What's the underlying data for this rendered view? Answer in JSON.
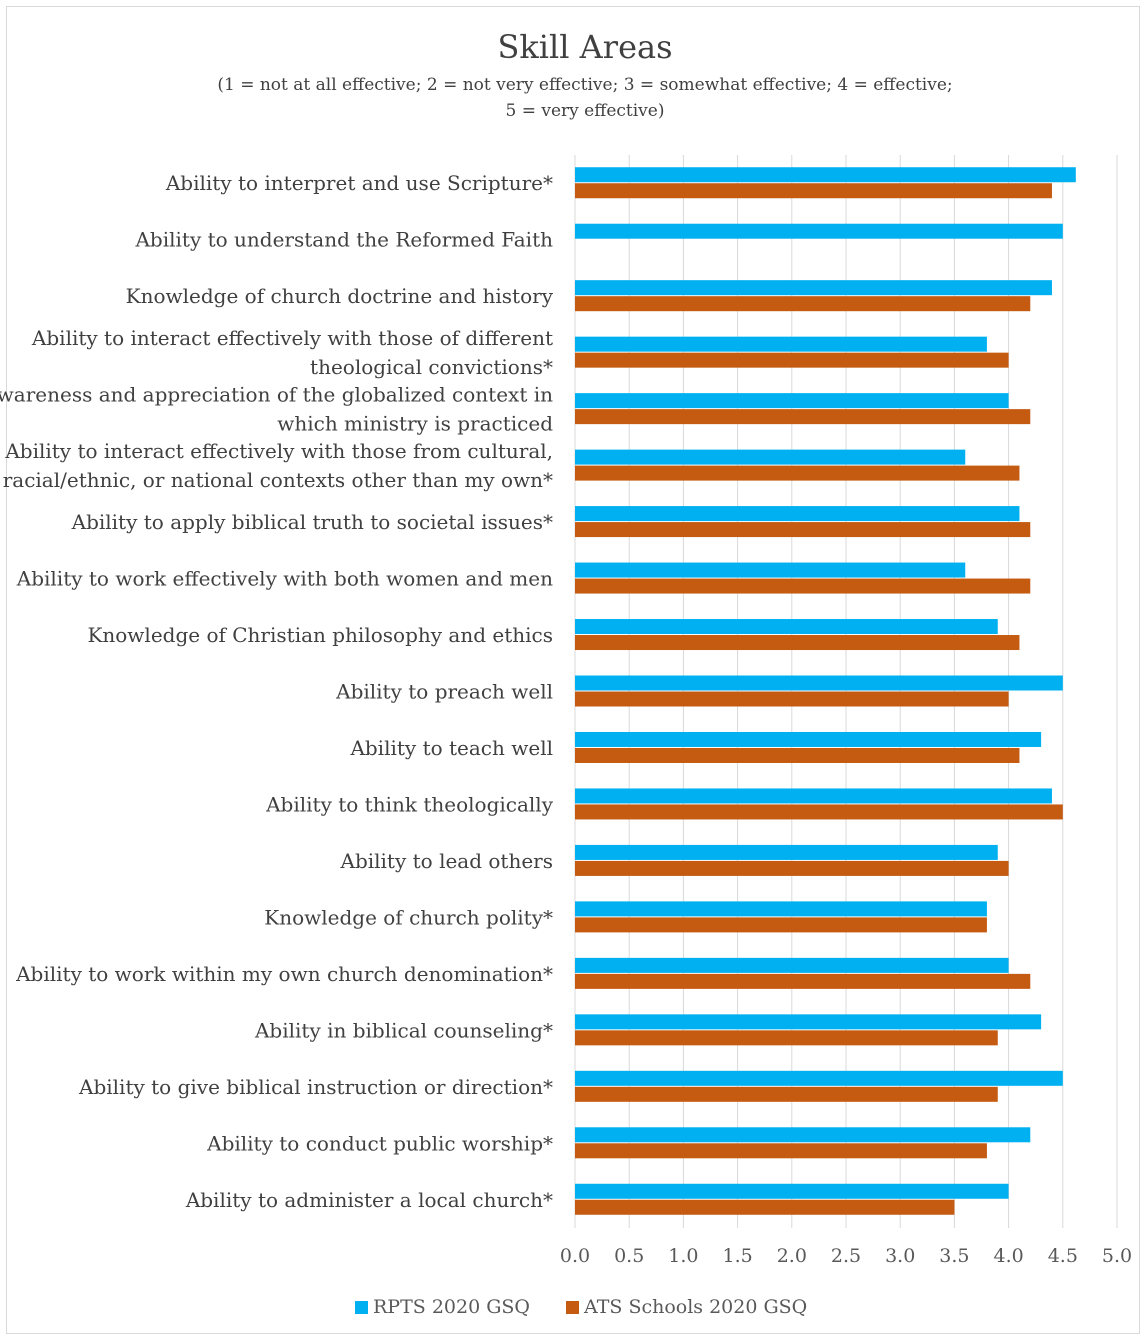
{
  "chart_data": {
    "type": "bar",
    "orientation": "horizontal",
    "title": "Skill Areas",
    "subtitle_lines": [
      "(1 = not at all effective; 2 = not very effective; 3 = somewhat effective; 4 = effective;",
      "5 = very effective)"
    ],
    "categories": [
      [
        "Ability to interpret and use Scripture*"
      ],
      [
        "Ability to understand the Reformed Faith"
      ],
      [
        "Knowledge of church doctrine and history"
      ],
      [
        "Ability to interact effectively with those of different",
        "theological convictions*"
      ],
      [
        "Awareness and appreciation of the globalized context in",
        "which ministry is practiced"
      ],
      [
        "Ability to interact effectively with those from cultural,",
        "racial/ethnic, or national contexts other than my own*"
      ],
      [
        "Ability to apply biblical truth to societal issues*"
      ],
      [
        "Ability to work effectively with both women and men"
      ],
      [
        "Knowledge of Christian philosophy and ethics"
      ],
      [
        "Ability to preach well"
      ],
      [
        "Ability to teach well"
      ],
      [
        "Ability to think theologically"
      ],
      [
        "Ability to lead others"
      ],
      [
        "Knowledge of church polity*"
      ],
      [
        "Ability to work within my own church denomination*"
      ],
      [
        "Ability in biblical counseling*"
      ],
      [
        "Ability to give biblical instruction or direction*"
      ],
      [
        "Ability to conduct public worship*"
      ],
      [
        "Ability to administer a local church*"
      ]
    ],
    "series": [
      {
        "name": "RPTS 2020 GSQ",
        "color": "#00b0f0",
        "values": [
          4.62,
          4.5,
          4.4,
          3.8,
          4.0,
          3.6,
          4.1,
          3.6,
          3.9,
          4.5,
          4.3,
          4.4,
          3.9,
          3.8,
          4.0,
          4.3,
          4.5,
          4.2,
          4.0
        ]
      },
      {
        "name": "ATS Schools 2020 GSQ",
        "color": "#c55a11",
        "values": [
          4.4,
          null,
          4.2,
          4.0,
          4.2,
          4.1,
          4.2,
          4.2,
          4.1,
          4.0,
          4.1,
          4.5,
          4.0,
          3.8,
          4.2,
          3.9,
          3.9,
          3.8,
          3.5
        ]
      }
    ],
    "xlim": [
      0,
      5
    ],
    "xticks": [
      "0.0",
      "0.5",
      "1.0",
      "1.5",
      "2.0",
      "2.5",
      "3.0",
      "3.5",
      "4.0",
      "4.5",
      "5.0"
    ],
    "grid": true,
    "legend_position": "bottom"
  }
}
